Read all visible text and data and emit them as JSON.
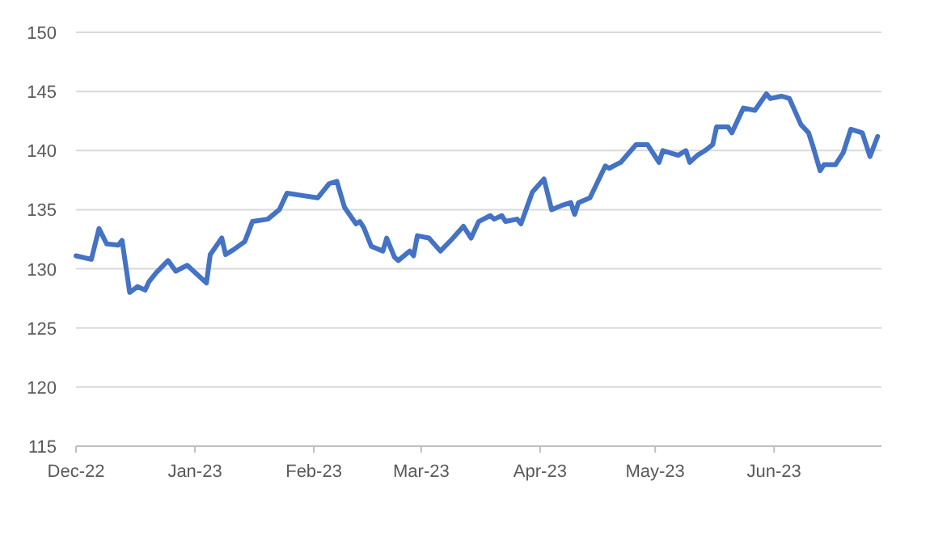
{
  "chart_data": {
    "type": "line",
    "x": [
      "2022-12-01",
      "2022-12-05",
      "2022-12-07",
      "2022-12-09",
      "2022-12-12",
      "2022-12-13",
      "2022-12-15",
      "2022-12-17",
      "2022-12-19",
      "2022-12-20",
      "2022-12-22",
      "2022-12-25",
      "2022-12-27",
      "2022-12-30",
      "2023-01-04",
      "2023-01-05",
      "2023-01-08",
      "2023-01-09",
      "2023-01-11",
      "2023-01-14",
      "2023-01-16",
      "2023-01-20",
      "2023-01-23",
      "2023-01-25",
      "2023-01-29",
      "2023-02-02",
      "2023-02-05",
      "2023-02-07",
      "2023-02-09",
      "2023-02-12",
      "2023-02-13",
      "2023-02-14",
      "2023-02-16",
      "2023-02-19",
      "2023-02-20",
      "2023-02-22",
      "2023-02-23",
      "2023-02-26",
      "2023-02-27",
      "2023-02-28",
      "2023-03-03",
      "2023-03-06",
      "2023-03-09",
      "2023-03-12",
      "2023-03-14",
      "2023-03-16",
      "2023-03-19",
      "2023-03-20",
      "2023-03-22",
      "2023-03-23",
      "2023-03-26",
      "2023-03-27",
      "2023-03-30",
      "2023-04-02",
      "2023-04-04",
      "2023-04-07",
      "2023-04-09",
      "2023-04-10",
      "2023-04-11",
      "2023-04-14",
      "2023-04-18",
      "2023-04-19",
      "2023-04-22",
      "2023-04-26",
      "2023-04-29",
      "2023-05-02",
      "2023-05-03",
      "2023-05-07",
      "2023-05-09",
      "2023-05-10",
      "2023-05-12",
      "2023-05-14",
      "2023-05-16",
      "2023-05-17",
      "2023-05-20",
      "2023-05-21",
      "2023-05-24",
      "2023-05-27",
      "2023-05-30",
      "2023-05-31",
      "2023-06-03",
      "2023-06-05",
      "2023-06-08",
      "2023-06-10",
      "2023-06-11",
      "2023-06-13",
      "2023-06-14",
      "2023-06-17",
      "2023-06-19",
      "2023-06-21",
      "2023-06-24",
      "2023-06-26",
      "2023-06-28"
    ],
    "series": [
      {
        "color": "#4472c4",
        "values": [
          131.1,
          130.8,
          133.4,
          132.1,
          132.0,
          132.4,
          128.0,
          128.5,
          128.2,
          128.9,
          129.7,
          130.7,
          129.8,
          130.3,
          128.8,
          131.2,
          132.6,
          131.2,
          131.6,
          132.3,
          134.0,
          134.2,
          135.0,
          136.4,
          136.2,
          136.0,
          137.2,
          137.4,
          135.2,
          133.8,
          134.0,
          133.5,
          131.9,
          131.5,
          132.6,
          131.0,
          130.7,
          131.5,
          131.1,
          132.8,
          132.6,
          131.5,
          132.5,
          133.6,
          132.6,
          134.0,
          134.5,
          134.2,
          134.5,
          134.0,
          134.2,
          133.8,
          136.5,
          137.6,
          135.0,
          135.4,
          135.6,
          134.6,
          135.6,
          136.0,
          138.7,
          138.5,
          139.0,
          140.5,
          140.5,
          139.0,
          140.0,
          139.6,
          140.0,
          139.0,
          139.6,
          140.0,
          140.5,
          142.0,
          142.0,
          141.5,
          143.6,
          143.4,
          144.8,
          144.4,
          144.6,
          144.4,
          142.2,
          141.5,
          140.5,
          138.3,
          138.8,
          138.8,
          139.8,
          141.8,
          141.5,
          139.5,
          141.2
        ]
      }
    ],
    "xlim": [
      "2022-12-01",
      "2023-06-29"
    ],
    "xticks": [
      {
        "value": "2022-12-01",
        "label": "Dec-22"
      },
      {
        "value": "2023-01-01",
        "label": "Jan-23"
      },
      {
        "value": "2023-02-01",
        "label": "Feb-23"
      },
      {
        "value": "2023-03-01",
        "label": "Mar-23"
      },
      {
        "value": "2023-04-01",
        "label": "Apr-23"
      },
      {
        "value": "2023-05-01",
        "label": "May-23"
      },
      {
        "value": "2023-06-01",
        "label": "Jun-23"
      }
    ],
    "ylim": [
      115,
      150
    ],
    "yticks": [
      115,
      120,
      125,
      130,
      135,
      140,
      145,
      150
    ],
    "grid": "y",
    "line_style": "solid",
    "marker": "none"
  }
}
